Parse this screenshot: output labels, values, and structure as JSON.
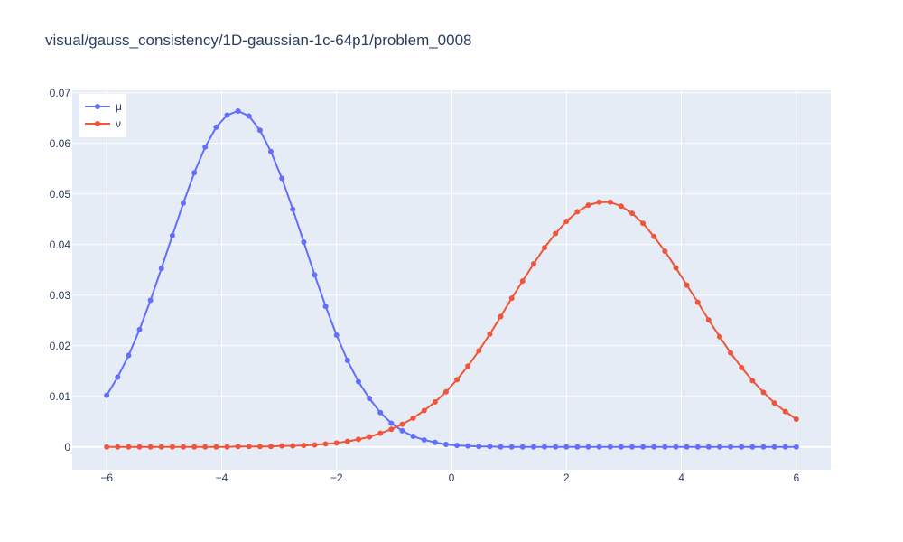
{
  "chart_data": {
    "type": "line",
    "title": "visual/gauss_consistency/1D-gaussian-1c-64p1/problem_0008",
    "xlabel": "",
    "ylabel": "",
    "xlim": [
      -6.6,
      6.6
    ],
    "ylim": [
      -0.0045,
      0.0705
    ],
    "grid": true,
    "legend_position": "top-left",
    "x_ticks": [
      -6,
      -4,
      -2,
      0,
      2,
      4,
      6
    ],
    "x_tick_labels": [
      "−6",
      "−4",
      "−2",
      "0",
      "2",
      "4",
      "6"
    ],
    "y_ticks": [
      0,
      0.01,
      0.02,
      0.03,
      0.04,
      0.05,
      0.06,
      0.07
    ],
    "y_tick_labels": [
      "0",
      "0.01",
      "0.02",
      "0.03",
      "0.04",
      "0.05",
      "0.06",
      "0.07"
    ],
    "x": [
      -6.0,
      -5.81,
      -5.619,
      -5.429,
      -5.238,
      -5.048,
      -4.857,
      -4.667,
      -4.476,
      -4.286,
      -4.095,
      -3.905,
      -3.714,
      -3.524,
      -3.333,
      -3.143,
      -2.952,
      -2.762,
      -2.571,
      -2.381,
      -2.19,
      -2.0,
      -1.81,
      -1.619,
      -1.429,
      -1.238,
      -1.048,
      -0.857,
      -0.667,
      -0.476,
      -0.286,
      -0.095,
      0.095,
      0.286,
      0.476,
      0.667,
      0.857,
      1.048,
      1.238,
      1.429,
      1.619,
      1.81,
      2.0,
      2.19,
      2.381,
      2.571,
      2.762,
      2.952,
      3.143,
      3.333,
      3.524,
      3.714,
      3.905,
      4.095,
      4.286,
      4.476,
      4.667,
      4.857,
      5.048,
      5.238,
      5.429,
      5.619,
      5.81,
      6.0
    ],
    "series": [
      {
        "name": "μ",
        "color": "#636efa",
        "values": [
          0.0102,
          0.0138,
          0.0181,
          0.0232,
          0.029,
          0.0353,
          0.0418,
          0.0482,
          0.0542,
          0.0593,
          0.0632,
          0.0656,
          0.0664,
          0.0654,
          0.0626,
          0.0584,
          0.0531,
          0.047,
          0.0405,
          0.034,
          0.0278,
          0.0221,
          0.0171,
          0.0129,
          0.0096,
          0.0068,
          0.0047,
          0.0032,
          0.0021,
          0.0014,
          0.0009,
          0.0005,
          0.0003,
          0.0002,
          0.0001,
          0.0001,
          0.0,
          0.0,
          0.0,
          0.0,
          0.0,
          0.0,
          0.0,
          0.0,
          0.0,
          0.0,
          0.0,
          0.0,
          0.0,
          0.0,
          0.0,
          0.0,
          0.0,
          0.0,
          0.0,
          0.0,
          0.0,
          0.0,
          0.0,
          0.0,
          0.0,
          0.0,
          0.0,
          0.0
        ]
      },
      {
        "name": "ν",
        "color": "#ef553b",
        "values": [
          0.0,
          0.0,
          0.0,
          0.0,
          0.0,
          0.0,
          0.0,
          0.0,
          0.0,
          0.0,
          0.0,
          0.0,
          0.0001,
          0.0001,
          0.0001,
          0.0001,
          0.0002,
          0.0002,
          0.0003,
          0.0004,
          0.0006,
          0.0008,
          0.0011,
          0.0015,
          0.002,
          0.0027,
          0.0035,
          0.0045,
          0.0057,
          0.0072,
          0.0089,
          0.0109,
          0.0133,
          0.016,
          0.019,
          0.0223,
          0.0258,
          0.0294,
          0.0328,
          0.0362,
          0.0394,
          0.0422,
          0.0446,
          0.0465,
          0.0478,
          0.0484,
          0.0484,
          0.0476,
          0.0462,
          0.0442,
          0.0416,
          0.0387,
          0.0354,
          0.032,
          0.0286,
          0.0251,
          0.0218,
          0.0186,
          0.0157,
          0.0131,
          0.0108,
          0.0087,
          0.007,
          0.0055
        ]
      }
    ]
  }
}
